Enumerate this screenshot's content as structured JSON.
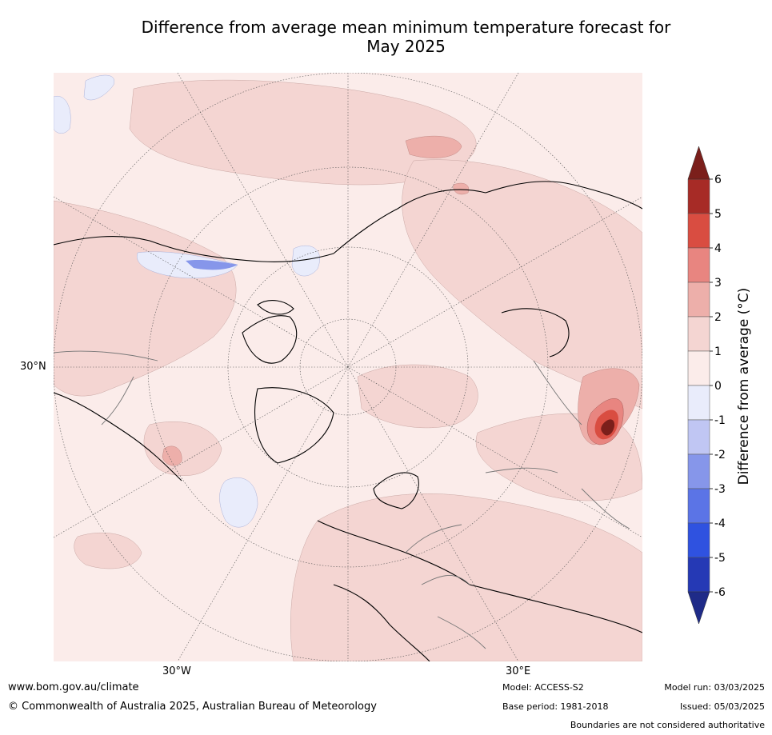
{
  "title_line1": "Difference from average mean minimum temperature forecast for",
  "title_line2": "May 2025",
  "axis_labels": {
    "left": "30°N",
    "bottom_left": "30°W",
    "bottom_right": "30°E"
  },
  "colorbar": {
    "label": "Difference from average (°C)",
    "ticks": [
      "6",
      "5",
      "4",
      "3",
      "2",
      "1",
      "0",
      "-1",
      "-2",
      "-3",
      "-4",
      "-5",
      "-6"
    ],
    "colors": [
      "#a72b26",
      "#d94d41",
      "#e88580",
      "#edafaa",
      "#f4d5d2",
      "#fbecea",
      "#e9ecfb",
      "#c0c6f3",
      "#8696ea",
      "#5b74e6",
      "#2f52e0",
      "#2539b5"
    ],
    "extend_over": "#7b1f1b",
    "extend_under": "#1f2b88"
  },
  "footer": {
    "url": "www.bom.gov.au/climate",
    "copyright": "© Commonwealth of Australia 2025, Australian Bureau of Meteorology",
    "model": "Model: ACCESS-S2",
    "base_period": "Base period: 1981-2018",
    "model_run": "Model run: 03/03/2025",
    "issued": "Issued: 05/03/2025",
    "disclaimer": "Boundaries are not considered authoritative"
  }
}
